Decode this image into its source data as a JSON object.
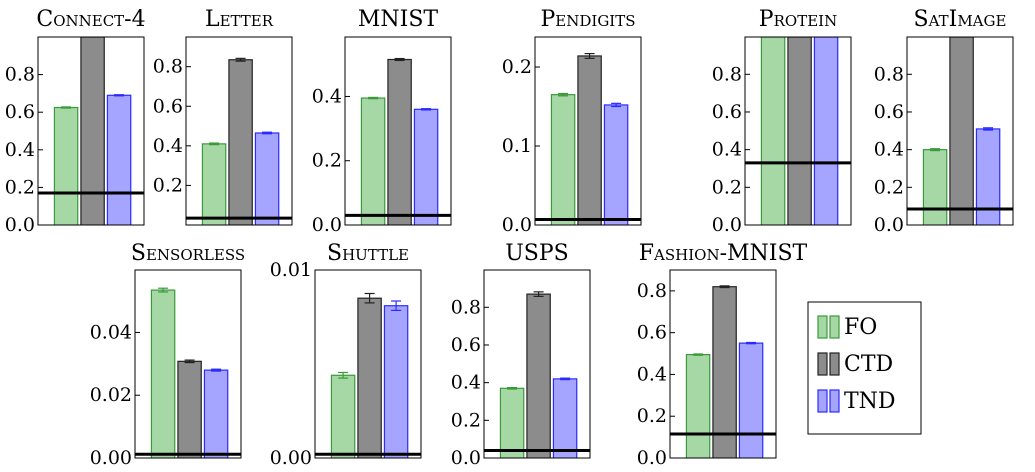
{
  "chart_data": [
    {
      "type": "bar",
      "title": "Connect-4",
      "categories": [
        "FO",
        "CTD",
        "TND"
      ],
      "values": [
        0.625,
        1.0,
        0.69
      ],
      "errors": [
        0.003,
        0.0,
        0.003
      ],
      "baseline": 0.17,
      "ylim": [
        0,
        1.0
      ],
      "ticks": [
        0,
        0.2,
        0.4,
        0.6,
        0.8
      ],
      "tick_labels": [
        "0.0",
        "0.2",
        "0.4",
        "0.6",
        "0.8"
      ]
    },
    {
      "type": "bar",
      "title": "Letter",
      "categories": [
        "FO",
        "CTD",
        "TND"
      ],
      "values": [
        0.41,
        0.835,
        0.465
      ],
      "errors": [
        0.004,
        0.007,
        0.004
      ],
      "baseline": 0.035,
      "ylim": [
        0,
        0.95
      ],
      "ticks": [
        0.2,
        0.4,
        0.6,
        0.8
      ],
      "tick_labels": [
        "0.2",
        "0.4",
        "0.6",
        "0.8"
      ]
    },
    {
      "type": "bar",
      "title": "MNIST",
      "categories": [
        "FO",
        "CTD",
        "TND"
      ],
      "values": [
        0.395,
        0.515,
        0.36
      ],
      "errors": [
        0.002,
        0.003,
        0.002
      ],
      "baseline": 0.03,
      "ylim": [
        0,
        0.585
      ],
      "ticks": [
        0,
        0.2,
        0.4
      ],
      "tick_labels": [
        "0.0",
        "0.2",
        "0.4"
      ]
    },
    {
      "type": "bar",
      "title": "Pendigits",
      "categories": [
        "FO",
        "CTD",
        "TND"
      ],
      "values": [
        0.165,
        0.214,
        0.152
      ],
      "errors": [
        0.0015,
        0.003,
        0.002
      ],
      "baseline": 0.007,
      "ylim": [
        0,
        0.238
      ],
      "ticks": [
        0,
        0.1,
        0.2
      ],
      "tick_labels": [
        "0.0",
        "0.1",
        "0.2"
      ]
    },
    {
      "type": "bar",
      "title": "Protein",
      "categories": [
        "FO",
        "CTD",
        "TND"
      ],
      "values": [
        1.0,
        1.0,
        1.0
      ],
      "errors": [
        0,
        0,
        0
      ],
      "baseline": 0.33,
      "ylim": [
        0,
        0.998
      ],
      "ticks": [
        0,
        0.2,
        0.4,
        0.6,
        0.8
      ],
      "tick_labels": [
        "0.0",
        "0.2",
        "0.4",
        "0.6",
        "0.8"
      ]
    },
    {
      "type": "bar",
      "title": "SatImage",
      "categories": [
        "FO",
        "CTD",
        "TND"
      ],
      "values": [
        0.4,
        1.0,
        0.51
      ],
      "errors": [
        0.005,
        0.0,
        0.006
      ],
      "baseline": 0.085,
      "ylim": [
        0,
        0.998
      ],
      "ticks": [
        0,
        0.2,
        0.4,
        0.6,
        0.8
      ],
      "tick_labels": [
        "0.0",
        "0.2",
        "0.4",
        "0.6",
        "0.8"
      ]
    },
    {
      "type": "bar",
      "title": "Sensorless",
      "categories": [
        "FO",
        "CTD",
        "TND"
      ],
      "values": [
        0.0535,
        0.0308,
        0.028
      ],
      "errors": [
        0.0006,
        0.0004,
        0.0003
      ],
      "baseline": 0.0012,
      "ylim": [
        0,
        0.0599
      ],
      "ticks": [
        0,
        0.02,
        0.04
      ],
      "tick_labels": [
        "0.00",
        "0.02",
        "0.04"
      ]
    },
    {
      "type": "bar",
      "title": "Shuttle",
      "categories": [
        "FO",
        "CTD",
        "TND"
      ],
      "values": [
        0.0044,
        0.0085,
        0.0081
      ],
      "errors": [
        0.00015,
        0.00025,
        0.00025
      ],
      "baseline": 0.0002,
      "ylim": [
        0,
        0.01
      ],
      "ticks": [
        0,
        0.01
      ],
      "tick_labels": [
        "0.00",
        "0.01"
      ]
    },
    {
      "type": "bar",
      "title": "USPS",
      "categories": [
        "FO",
        "CTD",
        "TND"
      ],
      "values": [
        0.37,
        0.87,
        0.42
      ],
      "errors": [
        0.004,
        0.012,
        0.004
      ],
      "baseline": 0.04,
      "ylim": [
        0,
        0.998
      ],
      "ticks": [
        0,
        0.2,
        0.4,
        0.6,
        0.8
      ],
      "tick_labels": [
        "0.0",
        "0.2",
        "0.4",
        "0.6",
        "0.8"
      ]
    },
    {
      "type": "bar",
      "title": "Fashion-MNIST",
      "categories": [
        "FO",
        "CTD",
        "TND"
      ],
      "values": [
        0.495,
        0.82,
        0.55
      ],
      "errors": [
        0.003,
        0.004,
        0.003
      ],
      "baseline": 0.115,
      "ylim": [
        0,
        0.9
      ],
      "ticks": [
        0,
        0.2,
        0.4,
        0.6,
        0.8
      ],
      "tick_labels": [
        "0.0",
        "0.2",
        "0.4",
        "0.6",
        "0.8"
      ]
    }
  ],
  "legend": {
    "items": [
      {
        "label": "FO",
        "fill": "#a6d8a6",
        "stroke": "#3a9a3a"
      },
      {
        "label": "CTD",
        "fill": "#8c8c8c",
        "stroke": "#222222"
      },
      {
        "label": "TND",
        "fill": "#a5a5ff",
        "stroke": "#2b2bff"
      }
    ]
  },
  "colors": {
    "FO": {
      "fill": "#a6d8a6",
      "stroke": "#3a9a3a"
    },
    "CTD": {
      "fill": "#8c8c8c",
      "stroke": "#222222"
    },
    "TND": {
      "fill": "#a5a5ff",
      "stroke": "#2b2bff"
    },
    "baseline": "#000000"
  }
}
